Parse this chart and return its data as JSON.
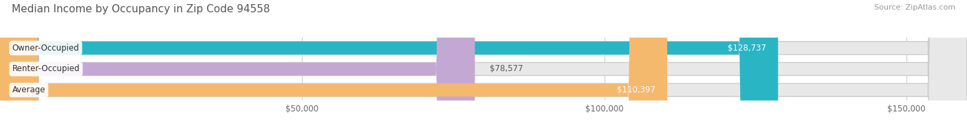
{
  "title": "Median Income by Occupancy in Zip Code 94558",
  "source": "Source: ZipAtlas.com",
  "categories": [
    "Owner-Occupied",
    "Renter-Occupied",
    "Average"
  ],
  "values": [
    128737,
    78577,
    110397
  ],
  "labels": [
    "$128,737",
    "$78,577",
    "$110,397"
  ],
  "bar_colors": [
    "#2ab5c5",
    "#c4a8d4",
    "#f5b96e"
  ],
  "bar_bg_color": "#e8e8e8",
  "xlim": [
    0,
    160000
  ],
  "xticks": [
    50000,
    100000,
    150000
  ],
  "xtick_labels": [
    "$50,000",
    "$100,000",
    "$150,000"
  ],
  "title_fontsize": 11,
  "source_fontsize": 8,
  "label_fontsize": 8.5,
  "tick_fontsize": 8.5,
  "background_color": "#ffffff",
  "bar_height": 0.62,
  "row_sep_color": "#f0f0f0",
  "label_color_inside": "#ffffff",
  "label_color_outside": "#555555",
  "grid_color": "#cccccc",
  "bar_border_color": "#cccccc"
}
